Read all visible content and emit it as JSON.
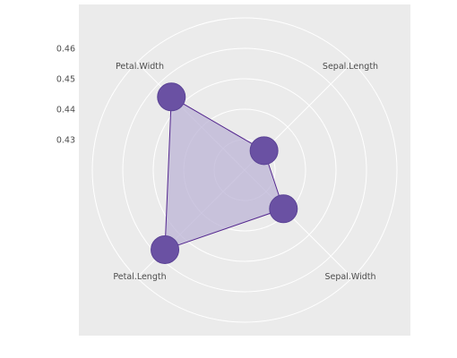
{
  "chart_data": {
    "type": "radar",
    "axes": [
      "Sepal.Length",
      "Sepal.Width",
      "Petal.Length",
      "Petal.Width"
    ],
    "series": [
      {
        "values": [
          0.429,
          0.438,
          0.457,
          0.454
        ]
      }
    ],
    "radial_ticks": [
      "0.43",
      "0.44",
      "0.45",
      "0.46"
    ],
    "radial_tick_values": [
      0.43,
      0.44,
      0.45,
      0.46
    ],
    "rlim": [
      0.42,
      0.47
    ],
    "grid": true,
    "legend": "none",
    "colors": {
      "panel": "#EBEBEB",
      "grid": "#FFFFFF",
      "fill": "#BCB4D6",
      "point": "#6A51A3",
      "line": "#54278F",
      "text": "#4D4D4D"
    }
  }
}
